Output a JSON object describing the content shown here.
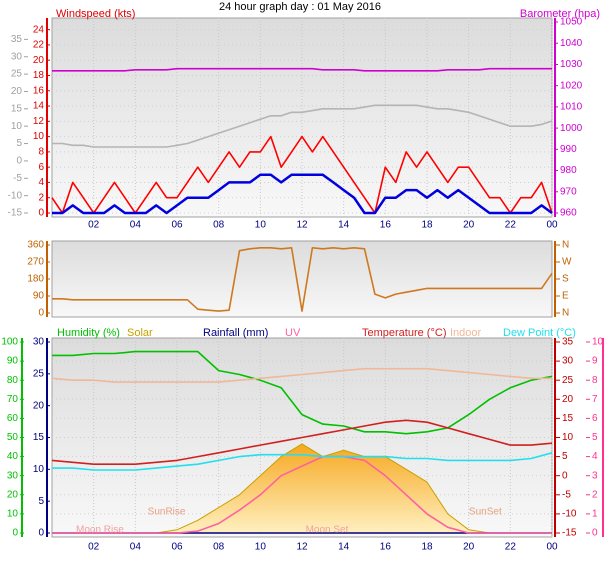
{
  "chart_data": [
    {
      "type": "line",
      "title": "24 hour graph day : 01 May 2016",
      "ytitle": "Windspeed (kts)",
      "y2title": "Barometer (hpa)",
      "axis_colors": {
        "y": "#e00000",
        "y2": "#d000d0",
        "y3": "#a0a0a0"
      },
      "x": [
        0,
        0.5,
        1,
        1.5,
        2,
        2.5,
        3,
        3.5,
        4,
        4.5,
        5,
        5.5,
        6,
        6.5,
        7,
        7.5,
        8,
        8.5,
        9,
        9.5,
        10,
        10.5,
        11,
        11.5,
        12,
        12.5,
        13,
        13.5,
        14,
        14.5,
        15,
        15.5,
        16,
        16.5,
        17,
        17.5,
        18,
        18.5,
        19,
        19.5,
        20,
        20.5,
        21,
        21.5,
        22,
        22.5,
        23,
        23.5,
        24
      ],
      "xlim": [
        0,
        24
      ],
      "xticks": [
        {
          "value": 2,
          "label": "02"
        },
        {
          "value": 4,
          "label": "04"
        },
        {
          "value": 6,
          "label": "06"
        },
        {
          "value": 8,
          "label": "08"
        },
        10,
        12,
        14,
        16,
        18,
        20,
        22,
        {
          "value": 24,
          "label": "00"
        }
      ],
      "ylim": [
        0,
        25
      ],
      "yticks": [
        0,
        2,
        4,
        6,
        8,
        10,
        12,
        14,
        16,
        18,
        20,
        22,
        24
      ],
      "y2lim": [
        960,
        1050
      ],
      "y2ticks": [
        960,
        970,
        980,
        990,
        1000,
        1010,
        1020,
        1030,
        1040,
        1050
      ],
      "y3lim": [
        -15,
        40
      ],
      "y3ticks": [
        -15,
        -10,
        -5,
        0,
        5,
        10,
        15,
        20,
        25,
        30,
        35
      ],
      "grid": true,
      "series": [
        {
          "color": "#b4b4b4",
          "axis": "y3",
          "values": [
            5,
            5,
            4.5,
            4.5,
            4,
            4,
            4,
            4,
            4,
            4,
            4,
            4,
            4.5,
            5,
            6,
            7,
            8,
            9,
            10,
            11,
            12,
            13,
            13,
            14,
            14,
            14.5,
            15,
            15,
            15,
            15,
            15.5,
            16,
            16,
            16,
            16,
            16,
            15.5,
            15,
            15,
            14.5,
            14,
            13,
            12,
            11,
            10,
            10,
            10,
            10.5,
            11.5
          ]
        },
        {
          "color": "#d000d0",
          "axis": "y2",
          "values": [
            1027,
            1027,
            1027,
            1027,
            1027,
            1027,
            1027,
            1027,
            1027.5,
            1027.5,
            1027.5,
            1027.5,
            1028,
            1028,
            1028,
            1028,
            1028,
            1028,
            1028,
            1028,
            1028,
            1028,
            1028,
            1028,
            1028,
            1028,
            1027.5,
            1027.5,
            1027.5,
            1027.5,
            1027,
            1027,
            1027,
            1027,
            1027,
            1027,
            1027,
            1027,
            1027.5,
            1027.5,
            1027.5,
            1027.5,
            1028,
            1028,
            1028,
            1028,
            1028,
            1028,
            1028
          ]
        },
        {
          "color": "#ff0000",
          "axis": "y",
          "values": [
            2,
            0,
            4,
            2,
            0,
            2,
            4,
            2,
            0,
            2,
            4,
            2,
            2,
            4,
            6,
            4,
            6,
            8,
            6,
            8,
            8,
            10,
            6,
            8,
            10,
            8,
            10,
            8,
            6,
            4,
            2,
            0,
            6,
            4,
            8,
            6,
            8,
            6,
            4,
            6,
            6,
            4,
            2,
            2,
            0,
            2,
            2,
            4,
            0
          ]
        },
        {
          "color": "#0000e0",
          "axis": "y",
          "values": [
            0,
            0,
            1,
            0,
            0,
            0,
            1,
            0,
            0,
            0,
            1,
            0,
            1,
            2,
            2,
            2,
            3,
            4,
            4,
            4,
            5,
            5,
            4,
            5,
            5,
            5,
            5,
            4,
            3,
            2,
            0,
            0,
            2,
            2,
            3,
            3,
            2,
            3,
            2,
            3,
            2,
            1,
            0,
            0,
            0,
            0,
            0,
            1,
            0
          ]
        }
      ]
    },
    {
      "type": "line",
      "axis_colors": {
        "y": "#c06000",
        "y2": "#c06000"
      },
      "x": [
        0,
        0.5,
        1,
        1.5,
        2,
        2.5,
        3,
        3.5,
        4,
        4.5,
        5,
        5.5,
        6,
        6.5,
        7,
        7.5,
        8,
        8.5,
        9,
        9.5,
        10,
        10.5,
        11,
        11.5,
        12,
        12.5,
        13,
        13.5,
        14,
        14.5,
        15,
        15.5,
        16,
        16.5,
        17,
        17.5,
        18,
        18.5,
        19,
        19.5,
        20,
        20.5,
        21,
        21.5,
        22,
        22.5,
        23,
        23.5,
        24
      ],
      "xlim": [
        0,
        24
      ],
      "ylim": [
        0,
        360
      ],
      "yticks": [
        0,
        90,
        180,
        270,
        360
      ],
      "y2lim": [
        0,
        360
      ],
      "y2ticks": [
        {
          "value": 0,
          "label": "N"
        },
        {
          "value": 90,
          "label": "E"
        },
        {
          "value": 180,
          "label": "S"
        },
        {
          "value": 270,
          "label": "W"
        },
        {
          "value": 360,
          "label": "N"
        }
      ],
      "series": [
        {
          "color": "#d07820",
          "axis": "y",
          "values": [
            75,
            75,
            70,
            70,
            70,
            70,
            70,
            70,
            70,
            70,
            70,
            70,
            70,
            70,
            20,
            15,
            10,
            15,
            330,
            340,
            345,
            345,
            340,
            345,
            10,
            345,
            340,
            345,
            340,
            345,
            340,
            100,
            80,
            100,
            110,
            120,
            130,
            130,
            130,
            130,
            130,
            130,
            130,
            130,
            130,
            130,
            130,
            130,
            210
          ]
        }
      ]
    },
    {
      "type": "line",
      "axis_colors": {
        "y": "#00c000",
        "y2": "#c00000",
        "y3": "#000080",
        "y4": "#ff3090"
      },
      "x": [
        0,
        1,
        2,
        3,
        4,
        5,
        6,
        7,
        8,
        9,
        10,
        11,
        12,
        13,
        14,
        15,
        16,
        17,
        18,
        19,
        20,
        21,
        22,
        23,
        24
      ],
      "xlim": [
        0,
        24
      ],
      "xticks": [
        {
          "value": 2,
          "label": "02"
        },
        {
          "value": 4,
          "label": "04"
        },
        {
          "value": 6,
          "label": "06"
        },
        {
          "value": 8,
          "label": "08"
        },
        10,
        12,
        14,
        16,
        18,
        20,
        22,
        {
          "value": 24,
          "label": "00"
        }
      ],
      "ylim": [
        0,
        100
      ],
      "yticks": [
        0,
        10,
        20,
        30,
        40,
        50,
        60,
        70,
        80,
        90,
        100
      ],
      "y2lim": [
        -15,
        35
      ],
      "y2ticks": [
        -15,
        -10,
        -5,
        0,
        5,
        10,
        15,
        20,
        25,
        30,
        35
      ],
      "y3lim": [
        0,
        30
      ],
      "y3ticks": [
        0,
        5,
        10,
        15,
        20,
        25,
        30
      ],
      "y4lim": [
        0,
        10
      ],
      "y4ticks": [
        0,
        1,
        2,
        3,
        4,
        5,
        6,
        7,
        8,
        9,
        10
      ],
      "grid": true,
      "series": [
        {
          "name": "Humidity (%)",
          "color": "#00c000",
          "axis": "y",
          "values": [
            93,
            93,
            94,
            94,
            95,
            95,
            95,
            95,
            85,
            83,
            80,
            76,
            62,
            57,
            56,
            53,
            53,
            52,
            53,
            55,
            62,
            70,
            76,
            80,
            82
          ]
        },
        {
          "name": "Solar",
          "color": "#c8a000",
          "axis": "y3",
          "fill": true,
          "values": [
            0,
            0,
            0,
            0,
            0,
            0,
            0.5,
            2,
            4,
            6,
            9,
            12,
            14,
            12,
            13,
            12,
            12,
            10,
            8,
            3,
            0.5,
            0,
            0,
            0,
            0
          ]
        },
        {
          "name": "Rainfall (mm)",
          "color": "#000080",
          "axis": "y3",
          "values": [
            0,
            0,
            0,
            0,
            0,
            0,
            0,
            0,
            0,
            0,
            0,
            0,
            0,
            0,
            0,
            0,
            0,
            0,
            0,
            0,
            0,
            0,
            0,
            0,
            0
          ]
        },
        {
          "name": "UV",
          "color": "#ff60a0",
          "axis": "y4",
          "values": [
            0,
            0,
            0,
            0,
            0,
            0,
            0,
            0.1,
            0.5,
            1.2,
            2,
            3,
            3.5,
            4,
            4,
            3.8,
            3,
            2,
            1,
            0.3,
            0,
            0,
            0,
            0,
            0
          ]
        },
        {
          "name": "Temperature (°C)",
          "color": "#d02020",
          "axis": "y2",
          "values": [
            4,
            3.5,
            3,
            3,
            3,
            3.5,
            4,
            5,
            6,
            7,
            8,
            9,
            10,
            11,
            12,
            13,
            14,
            14.5,
            14,
            12.5,
            11,
            9.5,
            8,
            8,
            8.5
          ]
        },
        {
          "name": "Indoor",
          "color": "#f0b898",
          "axis": "y2",
          "values": [
            25.5,
            25,
            25,
            24.5,
            24.5,
            24.5,
            24.5,
            24.5,
            24.5,
            25,
            25.5,
            26,
            26.5,
            27,
            27.5,
            28,
            28,
            28,
            28,
            27.5,
            27,
            26.5,
            26,
            25.5,
            25.5
          ]
        },
        {
          "name": "Dew Point (°C)",
          "color": "#20e0f0",
          "axis": "y2",
          "values": [
            2,
            2,
            1.5,
            1.5,
            1.5,
            2,
            2.5,
            3,
            4,
            5,
            5.5,
            5.5,
            5.5,
            5,
            5,
            5,
            5,
            4.5,
            4.5,
            4,
            4,
            4,
            4,
            4.5,
            6
          ]
        }
      ],
      "annotations": [
        {
          "text": "Moon Rise",
          "x": 2.3,
          "color": "#f0a0a0"
        },
        {
          "text": "SunRise",
          "x": 5.5,
          "color": "#e8a080"
        },
        {
          "text": "Moon Set",
          "x": 13.2,
          "color": "#f0a0a0"
        },
        {
          "text": "SunSet",
          "x": 20.8,
          "color": "#e8a080"
        }
      ]
    }
  ]
}
